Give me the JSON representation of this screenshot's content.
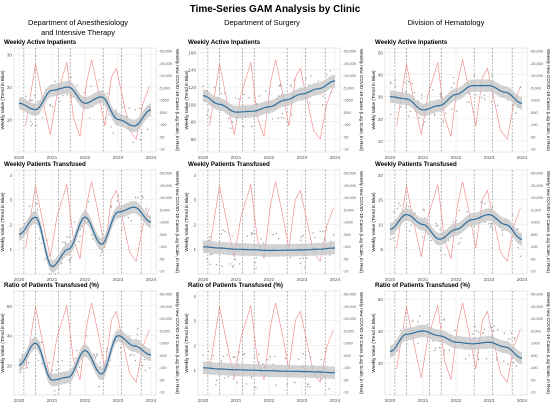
{
  "title": "Time-Series GAM Analysis by Clinic",
  "columns": [
    {
      "name": "Department of Anesthesiology",
      "name2": "and Intensive Therapy"
    },
    {
      "name": "Department of Surgery",
      "name2": ""
    },
    {
      "name": "Division of Hematology",
      "name2": ""
    }
  ],
  "ylabel_left": "Weekly Value (Trend in Blue)",
  "ylabel_right": "Weekly new COVID-19 Cases (Log Scale, in Red)",
  "colors": {
    "trend": "#2f6f9f",
    "ribbon": "#c4c4c4",
    "covid": "#f08080",
    "points": "#9a9a9a",
    "vline": "#555555",
    "grid": "#e6e6e6"
  },
  "chart_data": [
    {
      "type": "line",
      "row": 0,
      "col": 0,
      "title": "Weekly Active Inpatients",
      "ylim": [
        0,
        32
      ],
      "yticks": [
        10,
        20,
        30
      ],
      "x": [
        2020,
        2020.5,
        2021,
        2021.5,
        2022,
        2022.5,
        2023,
        2023.5,
        2024
      ],
      "trend": [
        15,
        13,
        19,
        20,
        15,
        17,
        10,
        8,
        13
      ]
    },
    {
      "type": "line",
      "row": 0,
      "col": 1,
      "title": "Weekly Active Inpatients",
      "ylim": [
        45,
        165
      ],
      "yticks": [
        60,
        80,
        100,
        120,
        140,
        160
      ],
      "x": [
        2020,
        2020.5,
        2021,
        2021.5,
        2022,
        2022.5,
        2023,
        2023.5,
        2024
      ],
      "trend": [
        110,
        100,
        91,
        92,
        97,
        105,
        112,
        118,
        127
      ]
    },
    {
      "type": "line",
      "row": 0,
      "col": 2,
      "title": "Weekly Active Inpatients",
      "ylim": [
        5,
        52
      ],
      "yticks": [
        10,
        20,
        30,
        40,
        50
      ],
      "x": [
        2020,
        2020.5,
        2021,
        2021.5,
        2022,
        2022.5,
        2023,
        2023.5,
        2024
      ],
      "trend": [
        30,
        29,
        24,
        26,
        31,
        35,
        35,
        32,
        27
      ]
    },
    {
      "type": "line",
      "row": 1,
      "col": 0,
      "title": "Weekly Patients Transfused",
      "ylim": [
        0,
        4.2
      ],
      "yticks": [
        1,
        2,
        3,
        4
      ],
      "x": [
        2020,
        2020.5,
        2021,
        2021.5,
        2022,
        2022.5,
        2023,
        2023.5,
        2024
      ],
      "trend": [
        1.6,
        2.3,
        0.3,
        1.0,
        2.3,
        1.2,
        2.5,
        2.7,
        2.1
      ]
    },
    {
      "type": "line",
      "row": 1,
      "col": 1,
      "title": "Weekly Patients Transfused",
      "ylim": [
        0,
        4.2
      ],
      "yticks": [
        1,
        2,
        3,
        4
      ],
      "x": [
        2020,
        2020.5,
        2021,
        2021.5,
        2022,
        2022.5,
        2023,
        2023.5,
        2024
      ],
      "trend": [
        1.1,
        1.05,
        1.0,
        0.98,
        0.95,
        0.96,
        0.97,
        1.0,
        1.05
      ]
    },
    {
      "type": "line",
      "row": 1,
      "col": 2,
      "title": "Weekly Patients Transfused",
      "ylim": [
        0,
        21
      ],
      "yticks": [
        5,
        10,
        15,
        20
      ],
      "x": [
        2020,
        2020.5,
        2021,
        2021.5,
        2022,
        2022.5,
        2023,
        2023.5,
        2024
      ],
      "trend": [
        9,
        12,
        10,
        7,
        9,
        11,
        12,
        10,
        7
      ]
    },
    {
      "type": "line",
      "row": 2,
      "col": 0,
      "title": "Ratio of Patients Transfused (%)",
      "ylim": [
        0,
        70
      ],
      "yticks": [
        20,
        40,
        60
      ],
      "x": [
        2020,
        2020.5,
        2021,
        2021.5,
        2022,
        2022.5,
        2023,
        2023.5,
        2024
      ],
      "trend": [
        20,
        35,
        10,
        12,
        30,
        14,
        40,
        33,
        27
      ]
    },
    {
      "type": "line",
      "row": 2,
      "col": 1,
      "title": "Ratio of Patients Transfused (%)",
      "ylim": [
        0,
        4.2
      ],
      "yticks": [
        1,
        2,
        3,
        4
      ],
      "x": [
        2020,
        2020.5,
        2021,
        2021.5,
        2022,
        2022.5,
        2023,
        2023.5,
        2024
      ],
      "trend": [
        1.1,
        1.05,
        1.02,
        1.0,
        0.98,
        0.96,
        0.95,
        0.93,
        0.9
      ]
    },
    {
      "type": "line",
      "row": 2,
      "col": 2,
      "title": "Ratio of Patients Transfused (%)",
      "ylim": [
        0,
        65
      ],
      "yticks": [
        20,
        40,
        60
      ],
      "x": [
        2020,
        2020.5,
        2021,
        2021.5,
        2022,
        2022.5,
        2023,
        2023.5,
        2024
      ],
      "trend": [
        27,
        38,
        40,
        37,
        33,
        32,
        33,
        30,
        23
      ]
    }
  ],
  "covid_axis": {
    "ticks": [
      "50,000",
      "25,000",
      "10,000",
      "5,000",
      "1000",
      "500",
      "100",
      "50",
      "10"
    ],
    "x": [
      2020.2,
      2020.5,
      2020.8,
      2020.95,
      2021.15,
      2021.45,
      2021.65,
      2021.85,
      2022.05,
      2022.2,
      2022.4,
      2022.6,
      2022.8,
      2022.95,
      2023.15,
      2023.35,
      2023.55,
      2023.75,
      2023.95
    ],
    "level": [
      0.2,
      0.9,
      0.35,
      0.1,
      0.55,
      0.92,
      0.3,
      0.08,
      0.7,
      0.95,
      0.6,
      0.2,
      0.75,
      0.85,
      0.5,
      0.15,
      0.05,
      0.45,
      0.65
    ]
  },
  "xticks": [
    "2020",
    "2021",
    "2022",
    "2023",
    "2024"
  ],
  "vlines": [
    2020.15,
    2020.5,
    2021.2,
    2021.55,
    2022.55,
    2023.1,
    2023.7
  ]
}
